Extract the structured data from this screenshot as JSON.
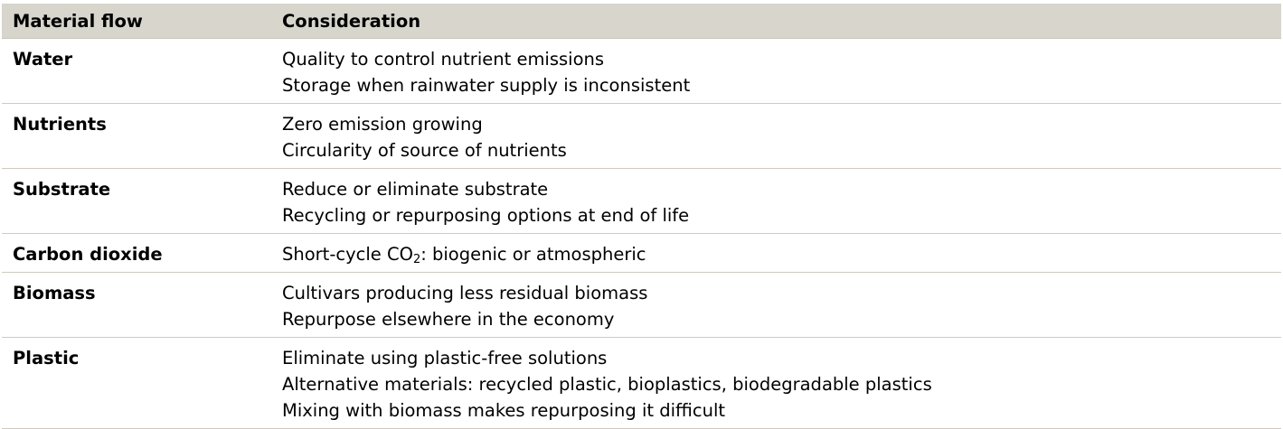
{
  "table": {
    "headers": {
      "material_flow": "Material flow",
      "consideration": "Consideration"
    },
    "rows": [
      {
        "material": "Water",
        "considerations": [
          "Quality to control nutrient emissions",
          "Storage when rainwater supply is inconsistent"
        ]
      },
      {
        "material": "Nutrients",
        "considerations": [
          "Zero emission growing",
          "Circularity of source of nutrients"
        ]
      },
      {
        "material": "Substrate",
        "considerations": [
          "Reduce or eliminate substrate",
          "Recycling or repurposing options at end of life"
        ]
      },
      {
        "material": "Carbon dioxide",
        "considerations_co2": {
          "prefix": "Short-cycle CO",
          "subscript": "2",
          "suffix": ": biogenic or atmospheric"
        }
      },
      {
        "material": "Biomass",
        "considerations": [
          "Cultivars producing less residual biomass",
          "Repurpose elsewhere in the economy"
        ]
      },
      {
        "material": "Plastic",
        "considerations": [
          "Eliminate using plastic-free solutions",
          "Alternative materials: recycled plastic, bioplastics, biodegradable plastics",
          "Mixing with biomass makes repurposing it difficult"
        ]
      }
    ]
  }
}
